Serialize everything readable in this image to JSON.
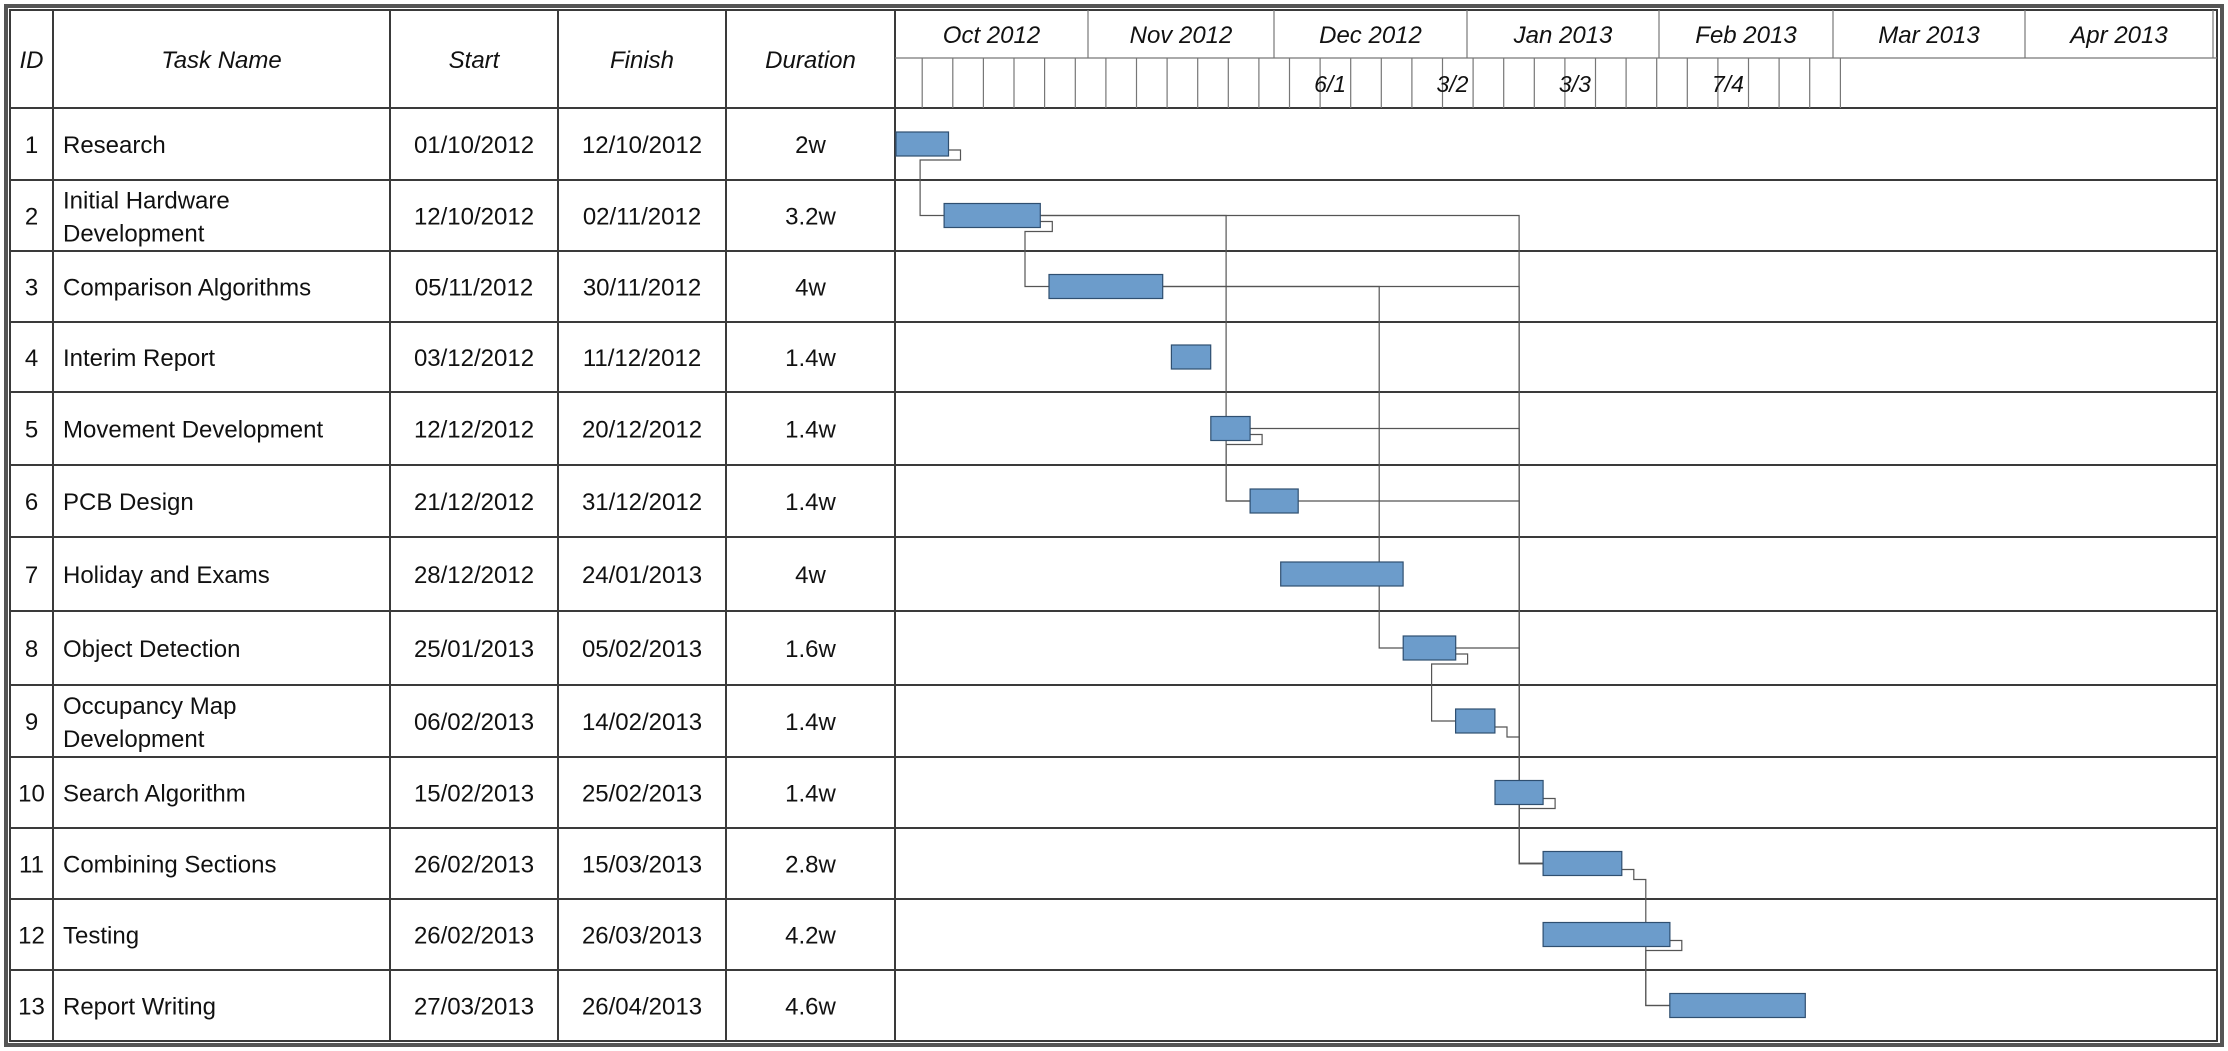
{
  "chart_data": {
    "type": "gantt",
    "columns": [
      "ID",
      "Task Name",
      "Start",
      "Finish",
      "Duration"
    ],
    "months": [
      "Oct 2012",
      "Nov 2012",
      "Dec 2012",
      "Jan 2013",
      "Feb 2013",
      "Mar 2013",
      "Apr 2013"
    ],
    "week_labels": [
      "6/1",
      "3/2",
      "3/3",
      "7/4"
    ],
    "tasks": [
      {
        "id": "1",
        "name": "Research",
        "start": "01/10/2012",
        "finish": "12/10/2012",
        "duration": "2w"
      },
      {
        "id": "2",
        "name": "Initial Hardware Development",
        "start": "12/10/2012",
        "finish": "02/11/2012",
        "duration": "3.2w"
      },
      {
        "id": "3",
        "name": "Comparison Algorithms",
        "start": "05/11/2012",
        "finish": "30/11/2012",
        "duration": "4w"
      },
      {
        "id": "4",
        "name": "Interim Report",
        "start": "03/12/2012",
        "finish": "11/12/2012",
        "duration": "1.4w"
      },
      {
        "id": "5",
        "name": "Movement Development",
        "start": "12/12/2012",
        "finish": "20/12/2012",
        "duration": "1.4w"
      },
      {
        "id": "6",
        "name": "PCB Design",
        "start": "21/12/2012",
        "finish": "31/12/2012",
        "duration": "1.4w"
      },
      {
        "id": "7",
        "name": "Holiday and Exams",
        "start": "28/12/2012",
        "finish": "24/01/2013",
        "duration": "4w"
      },
      {
        "id": "8",
        "name": "Object Detection",
        "start": "25/01/2013",
        "finish": "05/02/2013",
        "duration": "1.6w"
      },
      {
        "id": "9",
        "name": "Occupancy Map Development",
        "start": "06/02/2013",
        "finish": "14/02/2013",
        "duration": "1.4w"
      },
      {
        "id": "10",
        "name": "Search Algorithm",
        "start": "15/02/2013",
        "finish": "25/02/2013",
        "duration": "1.4w"
      },
      {
        "id": "11",
        "name": "Combining Sections",
        "start": "26/02/2013",
        "finish": "15/03/2013",
        "duration": "2.8w"
      },
      {
        "id": "12",
        "name": "Testing",
        "start": "26/02/2013",
        "finish": "26/03/2013",
        "duration": "4.2w"
      },
      {
        "id": "13",
        "name": "Report Writing",
        "start": "27/03/2013",
        "finish": "26/04/2013",
        "duration": "4.6w"
      }
    ],
    "dependencies": [
      [
        1,
        2
      ],
      [
        2,
        3
      ],
      [
        2,
        6
      ],
      [
        2,
        11
      ],
      [
        3,
        8
      ],
      [
        3,
        11
      ],
      [
        5,
        6
      ],
      [
        5,
        11
      ],
      [
        6,
        11
      ],
      [
        8,
        9
      ],
      [
        8,
        11
      ],
      [
        9,
        11
      ],
      [
        10,
        11
      ],
      [
        11,
        13
      ],
      [
        12,
        13
      ]
    ],
    "colors": {
      "bar": "#6c9ccb",
      "bar_border": "#2f4f70",
      "grid": "#3a3a3a",
      "connector": "#555555"
    }
  }
}
